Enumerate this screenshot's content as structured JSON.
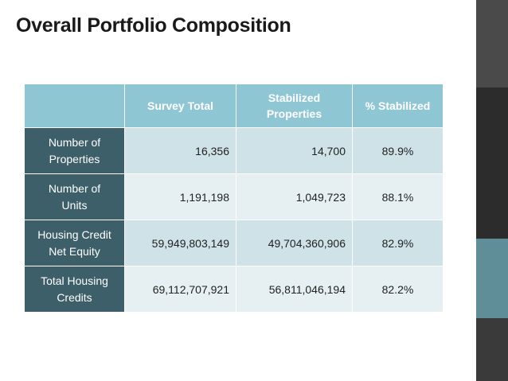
{
  "slide": {
    "title": "Overall Portfolio Composition"
  },
  "table": {
    "headers": [
      "",
      "Survey Total",
      "Stabilized Properties",
      "% Stabilized"
    ],
    "rows": [
      {
        "label": "Number of Properties",
        "survey_total": "16,356",
        "stabilized": "14,700",
        "pct": "89.9%"
      },
      {
        "label": "Number of Units",
        "survey_total": "1,191,198",
        "stabilized": "1,049,723",
        "pct": "88.1%"
      },
      {
        "label": "Housing Credit Net Equity",
        "survey_total": "59,949,803,149",
        "stabilized": "49,704,360,906",
        "pct": "82.9%"
      },
      {
        "label": "Total Housing Credits",
        "survey_total": "69,112,707,921",
        "stabilized": "56,811,046,194",
        "pct": "82.2%"
      }
    ]
  },
  "colors": {
    "header_bg": "#8fc6d4",
    "label_bg": "#3c5f6a",
    "row_odd": "#cfe2e7",
    "row_even": "#e6f0f3",
    "accent_teal": "#5f8e99"
  }
}
